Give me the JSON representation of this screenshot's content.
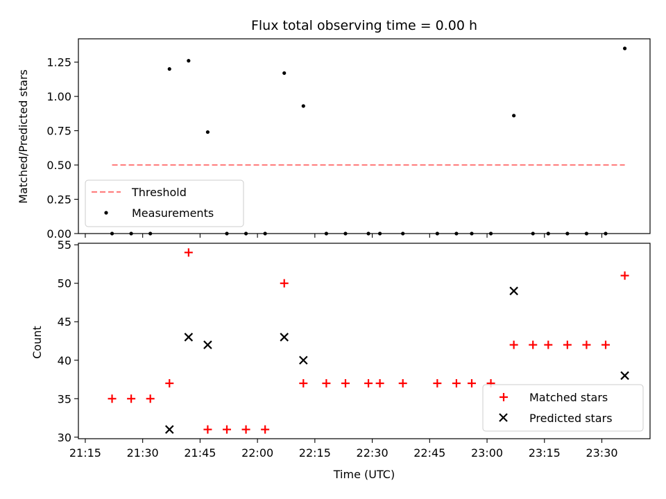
{
  "chart_data": [
    {
      "type": "scatter",
      "title": "Flux total observing time = 0.00 h",
      "xlabel": "",
      "ylabel": "Matched/Predicted stars",
      "ylim": [
        0,
        1.42
      ],
      "yticks": [
        "0.00",
        "0.25",
        "0.50",
        "0.75",
        "1.00",
        "1.25"
      ],
      "legend_placement": "lower-left",
      "series": [
        {
          "name": "Threshold",
          "kind": "dashed-line",
          "color": "#ff7f7f",
          "x": [
            "21:22",
            "23:36"
          ],
          "y": [
            0.5,
            0.5
          ]
        },
        {
          "name": "Measurements",
          "kind": "points",
          "color": "#000000",
          "x": [
            "21:22",
            "21:27",
            "21:32",
            "21:37",
            "21:42",
            "21:47",
            "21:52",
            "21:57",
            "22:02",
            "22:07",
            "22:12",
            "22:18",
            "22:23",
            "22:29",
            "22:32",
            "22:38",
            "22:47",
            "22:52",
            "22:56",
            "23:01",
            "23:07",
            "23:12",
            "23:16",
            "23:21",
            "23:26",
            "23:31",
            "23:36"
          ],
          "y": [
            0,
            0,
            0,
            1.2,
            1.26,
            0.74,
            0,
            0,
            0,
            1.17,
            0.93,
            0,
            0,
            0,
            0,
            0,
            0,
            0,
            0,
            0,
            0.86,
            0,
            0,
            0,
            0,
            0,
            1.35
          ]
        }
      ]
    },
    {
      "type": "scatter",
      "title": "",
      "xlabel": "Time (UTC)",
      "ylabel": "Count",
      "ylim": [
        29.8,
        55.2
      ],
      "yticks": [
        "30",
        "35",
        "40",
        "45",
        "50",
        "55"
      ],
      "x_ticks": [
        "21:15",
        "21:30",
        "21:45",
        "22:00",
        "22:15",
        "22:30",
        "22:45",
        "23:00",
        "23:15",
        "23:30"
      ],
      "legend_placement": "lower-right",
      "series": [
        {
          "name": "Matched stars",
          "marker": "plus",
          "color": "#ff0000",
          "x": [
            "21:22",
            "21:27",
            "21:32",
            "21:37",
            "21:42",
            "21:47",
            "21:52",
            "21:57",
            "22:02",
            "22:07",
            "22:12",
            "22:18",
            "22:23",
            "22:29",
            "22:32",
            "22:38",
            "22:47",
            "22:52",
            "22:56",
            "23:01",
            "23:07",
            "23:12",
            "23:16",
            "23:21",
            "23:26",
            "23:31",
            "23:36"
          ],
          "y": [
            35,
            35,
            35,
            37,
            54,
            31,
            31,
            31,
            31,
            50,
            37,
            37,
            37,
            37,
            37,
            37,
            37,
            37,
            37,
            37,
            42,
            42,
            42,
            42,
            42,
            42,
            51
          ]
        },
        {
          "name": "Predicted stars",
          "marker": "x",
          "color": "#000000",
          "x": [
            "21:37",
            "21:42",
            "21:47",
            "22:07",
            "22:12",
            "23:07",
            "23:36"
          ],
          "y": [
            31,
            43,
            42,
            43,
            40,
            49,
            38
          ]
        }
      ]
    }
  ]
}
